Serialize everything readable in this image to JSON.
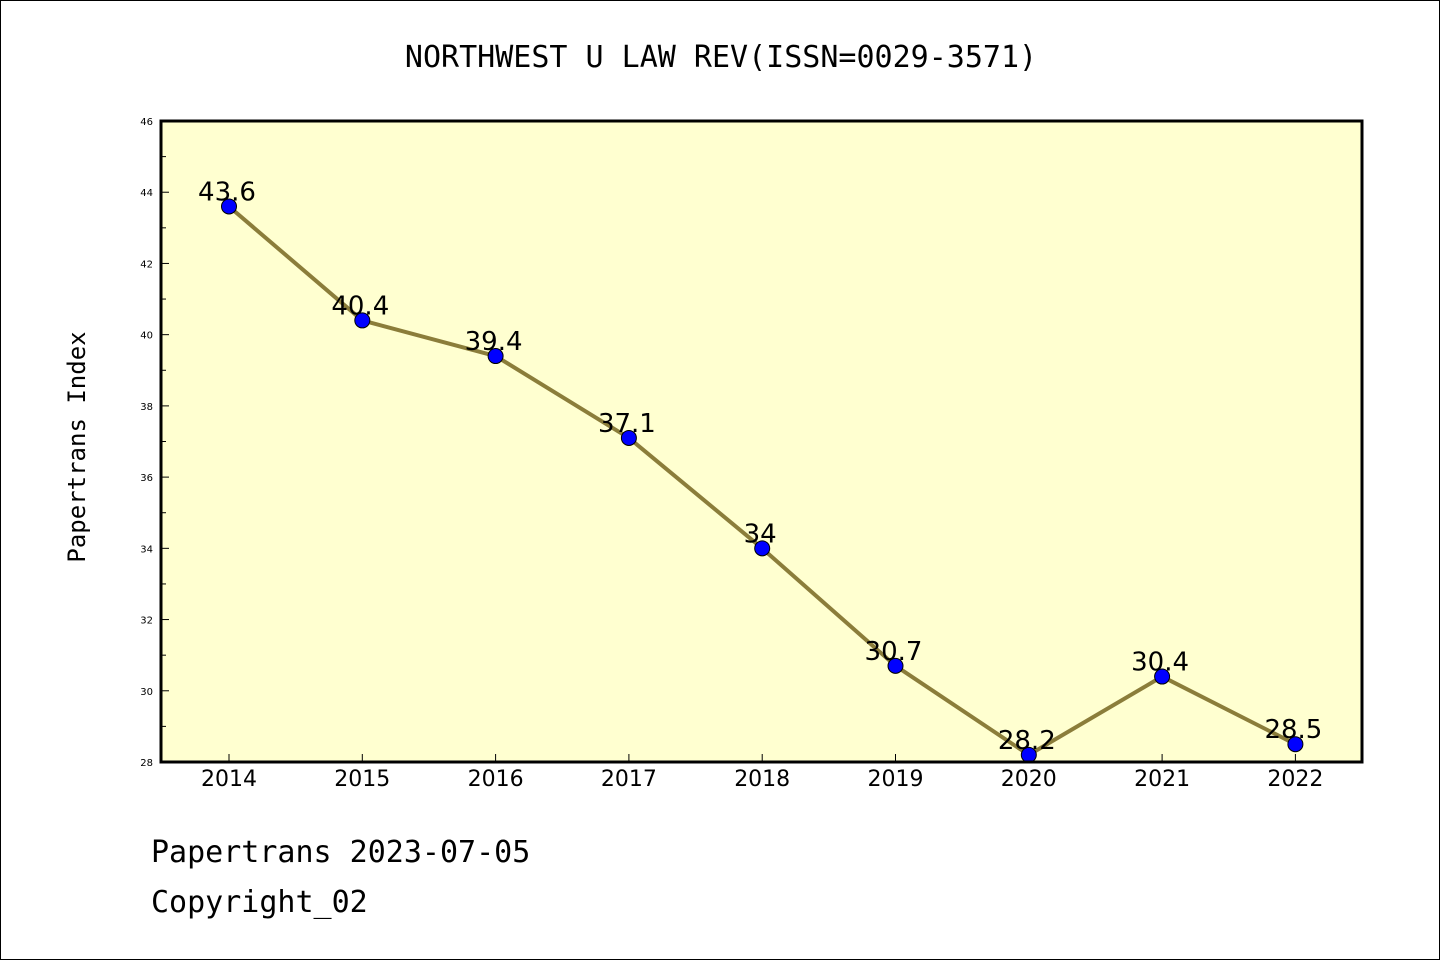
{
  "chart_data": {
    "type": "line",
    "title": "NORTHWEST U LAW REV(ISSN=0029-3571)",
    "ylabel": "Papertrans Index",
    "xlabel": "",
    "categories": [
      "2014",
      "2015",
      "2016",
      "2017",
      "2018",
      "2019",
      "2020",
      "2021",
      "2022"
    ],
    "series": [
      {
        "values": [
          43.6,
          40.4,
          39.4,
          37.1,
          34,
          30.7,
          28.2,
          30.4,
          28.5
        ],
        "labels": [
          "43.6",
          "40.4",
          "39.4",
          "37.1",
          "34",
          "30.7",
          "28.2",
          "30.4",
          "28.5"
        ]
      }
    ],
    "ylim": [
      28,
      46
    ],
    "yticks": [
      "28",
      "30",
      "32",
      "34",
      "36",
      "38",
      "40",
      "42",
      "44",
      "46"
    ],
    "grid": false,
    "legend": "none",
    "colors": {
      "plot_background": "#ffffd0",
      "line": "#8b7d3a",
      "marker": "#0000ff"
    }
  },
  "footer": {
    "source": "Papertrans 2023-07-05",
    "copyright": "Copyright_02"
  }
}
